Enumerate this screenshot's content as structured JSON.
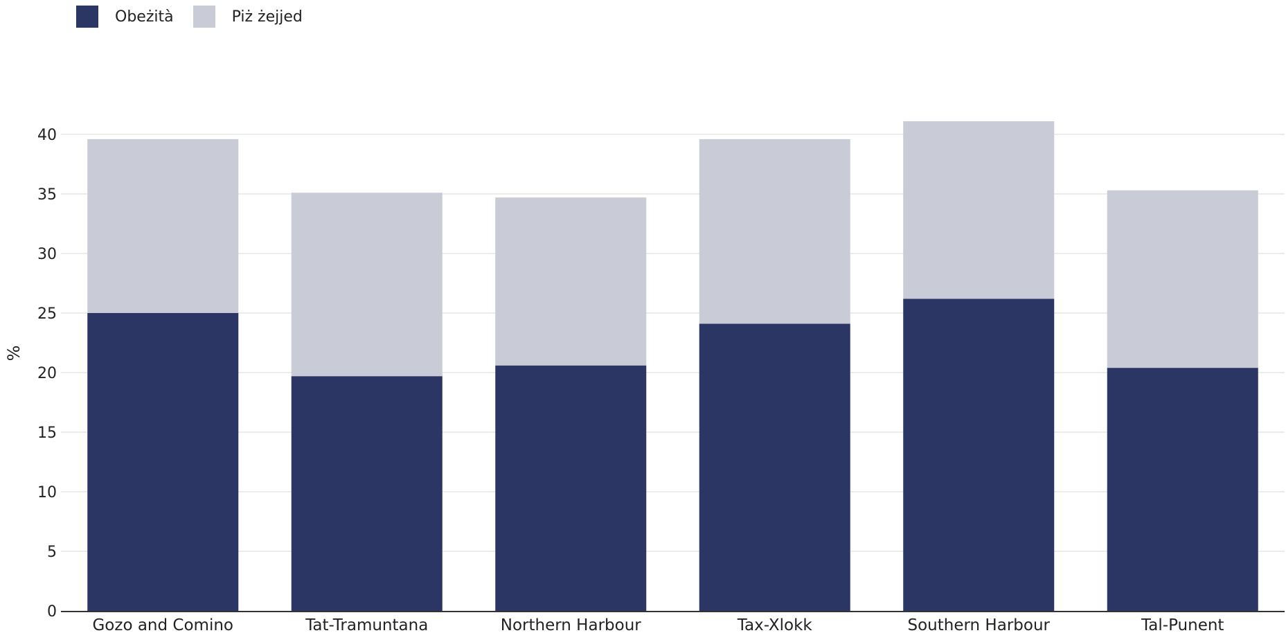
{
  "chart_data": {
    "type": "bar",
    "stacked": true,
    "categories": [
      "Gozo and Comino",
      "Tat-Tramuntana",
      "Northern Harbour",
      "Tax-Xlokk",
      "Southern Harbour",
      "Tal-Punent"
    ],
    "series": [
      {
        "name": "Obeżità",
        "color": "#2b3664",
        "values": [
          25.0,
          19.7,
          20.6,
          24.1,
          26.2,
          20.4
        ]
      },
      {
        "name": "Piż żejjed",
        "color": "#c9cbd7",
        "values": [
          14.6,
          15.4,
          14.1,
          15.5,
          14.9,
          14.9
        ]
      }
    ],
    "title": "",
    "xlabel": "",
    "ylabel": "%",
    "ylim": [
      0,
      42
    ],
    "yticks": [
      0,
      5,
      10,
      15,
      20,
      25,
      30,
      35,
      40
    ],
    "grid": true,
    "legend": "top-left"
  }
}
